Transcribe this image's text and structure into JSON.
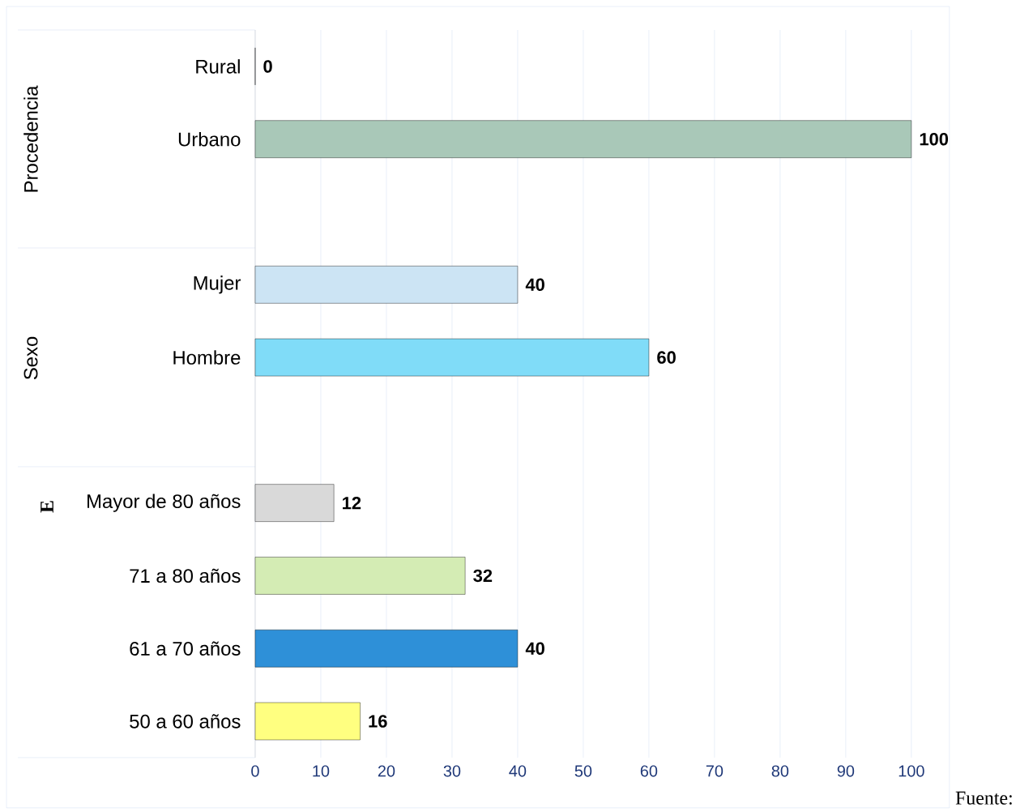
{
  "chart_data": {
    "type": "bar",
    "orientation": "horizontal",
    "categories": [
      "Rural",
      "Urbano",
      null,
      "Mujer",
      "Hombre",
      null,
      "Mayor de 80 años",
      "71 a 80 años",
      "61 a 70 años",
      "50 a 60 años"
    ],
    "values": [
      0,
      100,
      null,
      40,
      60,
      null,
      12,
      32,
      40,
      16
    ],
    "colors": [
      "#000000",
      "#a9c8b8",
      null,
      "#cce4f4",
      "#80dcf8",
      null,
      "#d9d9d9",
      "#d4ecb4",
      "#2e90d8",
      "#ffff80"
    ],
    "xlim": [
      0,
      100
    ],
    "xticks": [
      0,
      10,
      20,
      30,
      40,
      50,
      60,
      70,
      80,
      90,
      100
    ],
    "grid": "x",
    "data_labels": true,
    "annotations": [
      "Procedencia",
      "Sexo",
      "E",
      "Fuente:"
    ]
  }
}
